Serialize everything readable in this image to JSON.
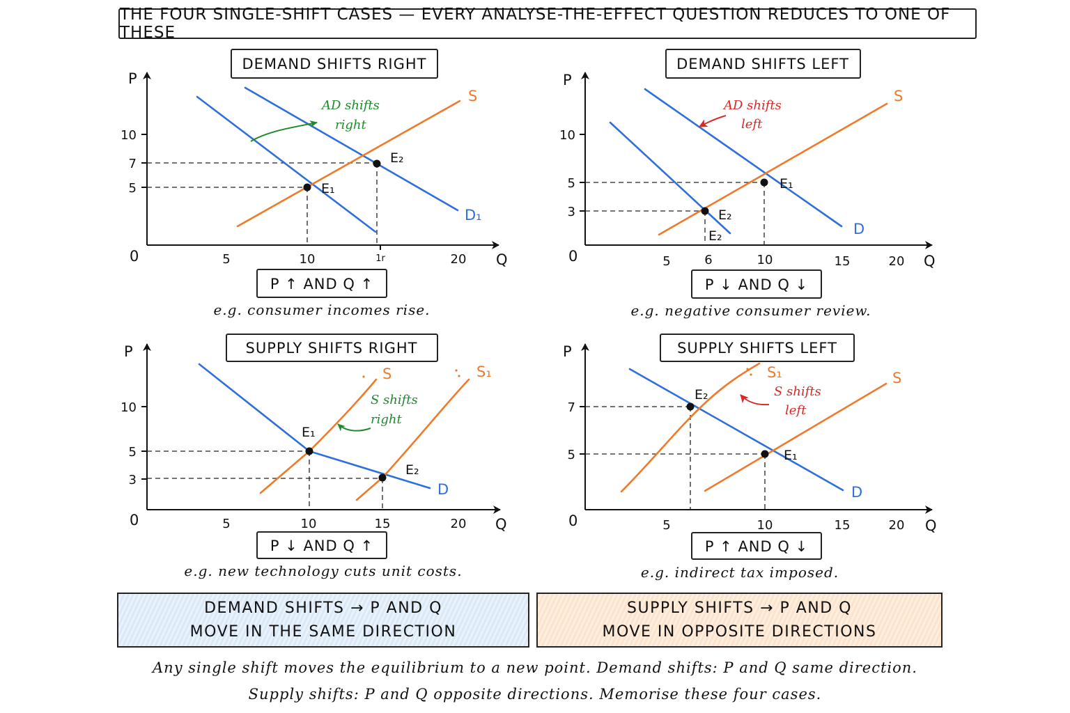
{
  "title": "THE FOUR SINGLE-SHIFT CASES — EVERY ANALYSE-THE-EFFECT QUESTION REDUCES TO ONE OF THESE",
  "colors": {
    "demand": "#2f6fdb",
    "supply": "#ee7a2a",
    "right_note": "#1f8a2b",
    "left_note": "#d62a2a"
  },
  "panels": [
    {
      "heading": "DEMAND SHIFTS RIGHT",
      "axes": {
        "y_label": "P",
        "x_label": "Q",
        "origin": "0",
        "x_ticks": [
          "5",
          "10",
          "1r",
          "20"
        ],
        "y_ticks": [
          "10",
          "7",
          "5"
        ]
      },
      "curves": {
        "supply": "S",
        "shifted": "D₁"
      },
      "annotation": [
        "AD shifts",
        "right"
      ],
      "eq1": "E₁",
      "eq2": "E₂",
      "result": "P ↑ AND Q ↑",
      "example": "e.g. consumer incomes rise."
    },
    {
      "heading": "DEMAND SHIFTS LEFT",
      "axes": {
        "y_label": "P",
        "x_label": "Q",
        "origin": "0",
        "x_ticks": [
          "5",
          "6",
          "10",
          "15",
          "20"
        ],
        "y_ticks": [
          "10",
          "5",
          "3"
        ]
      },
      "curves": {
        "supply": "S",
        "demand": "D"
      },
      "annotation": [
        "AD shifts",
        "left"
      ],
      "eq1": "E₁",
      "eq2": "E₂",
      "eq2_extra": "E₂",
      "result": "P ↓ AND Q ↓",
      "example": "e.g. negative consumer review."
    },
    {
      "heading": "SUPPLY SHIFTS RIGHT",
      "axes": {
        "y_label": "P",
        "x_label": "Q",
        "origin": "0",
        "x_ticks": [
          "5",
          "10",
          "15",
          "20"
        ],
        "y_ticks": [
          "10",
          "5",
          "3"
        ]
      },
      "curves": {
        "supply": "S",
        "shifted": "S₁",
        "demand": "D"
      },
      "annotation": [
        "S shifts",
        "right"
      ],
      "eq1": "E₁",
      "eq2": "E₂",
      "result": "P ↓ AND Q ↑",
      "example": "e.g. new technology cuts unit costs."
    },
    {
      "heading": "SUPPLY SHIFTS LEFT",
      "axes": {
        "y_label": "P",
        "x_label": "Q",
        "origin": "0",
        "x_ticks": [
          "5",
          "10",
          "15",
          "20"
        ],
        "y_ticks": [
          "7",
          "5"
        ]
      },
      "curves": {
        "supply": "S",
        "shifted": "S₁",
        "demand": "D"
      },
      "annotation": [
        "S shifts",
        "left"
      ],
      "eq1": "E₁",
      "eq2": "E₂",
      "result": "P ↑ AND Q ↓",
      "example": "e.g. indirect tax imposed."
    }
  ],
  "summary": {
    "demand": [
      "DEMAND SHIFTS → P AND Q",
      "MOVE IN THE SAME DIRECTION"
    ],
    "supply": [
      "SUPPLY SHIFTS → P AND Q",
      "MOVE IN OPPOSITE DIRECTIONS"
    ]
  },
  "footer": [
    "Any single shift moves the equilibrium to a new point. Demand shifts: P and Q same direction.",
    "Supply shifts: P and Q opposite directions. Memorise these four cases."
  ]
}
